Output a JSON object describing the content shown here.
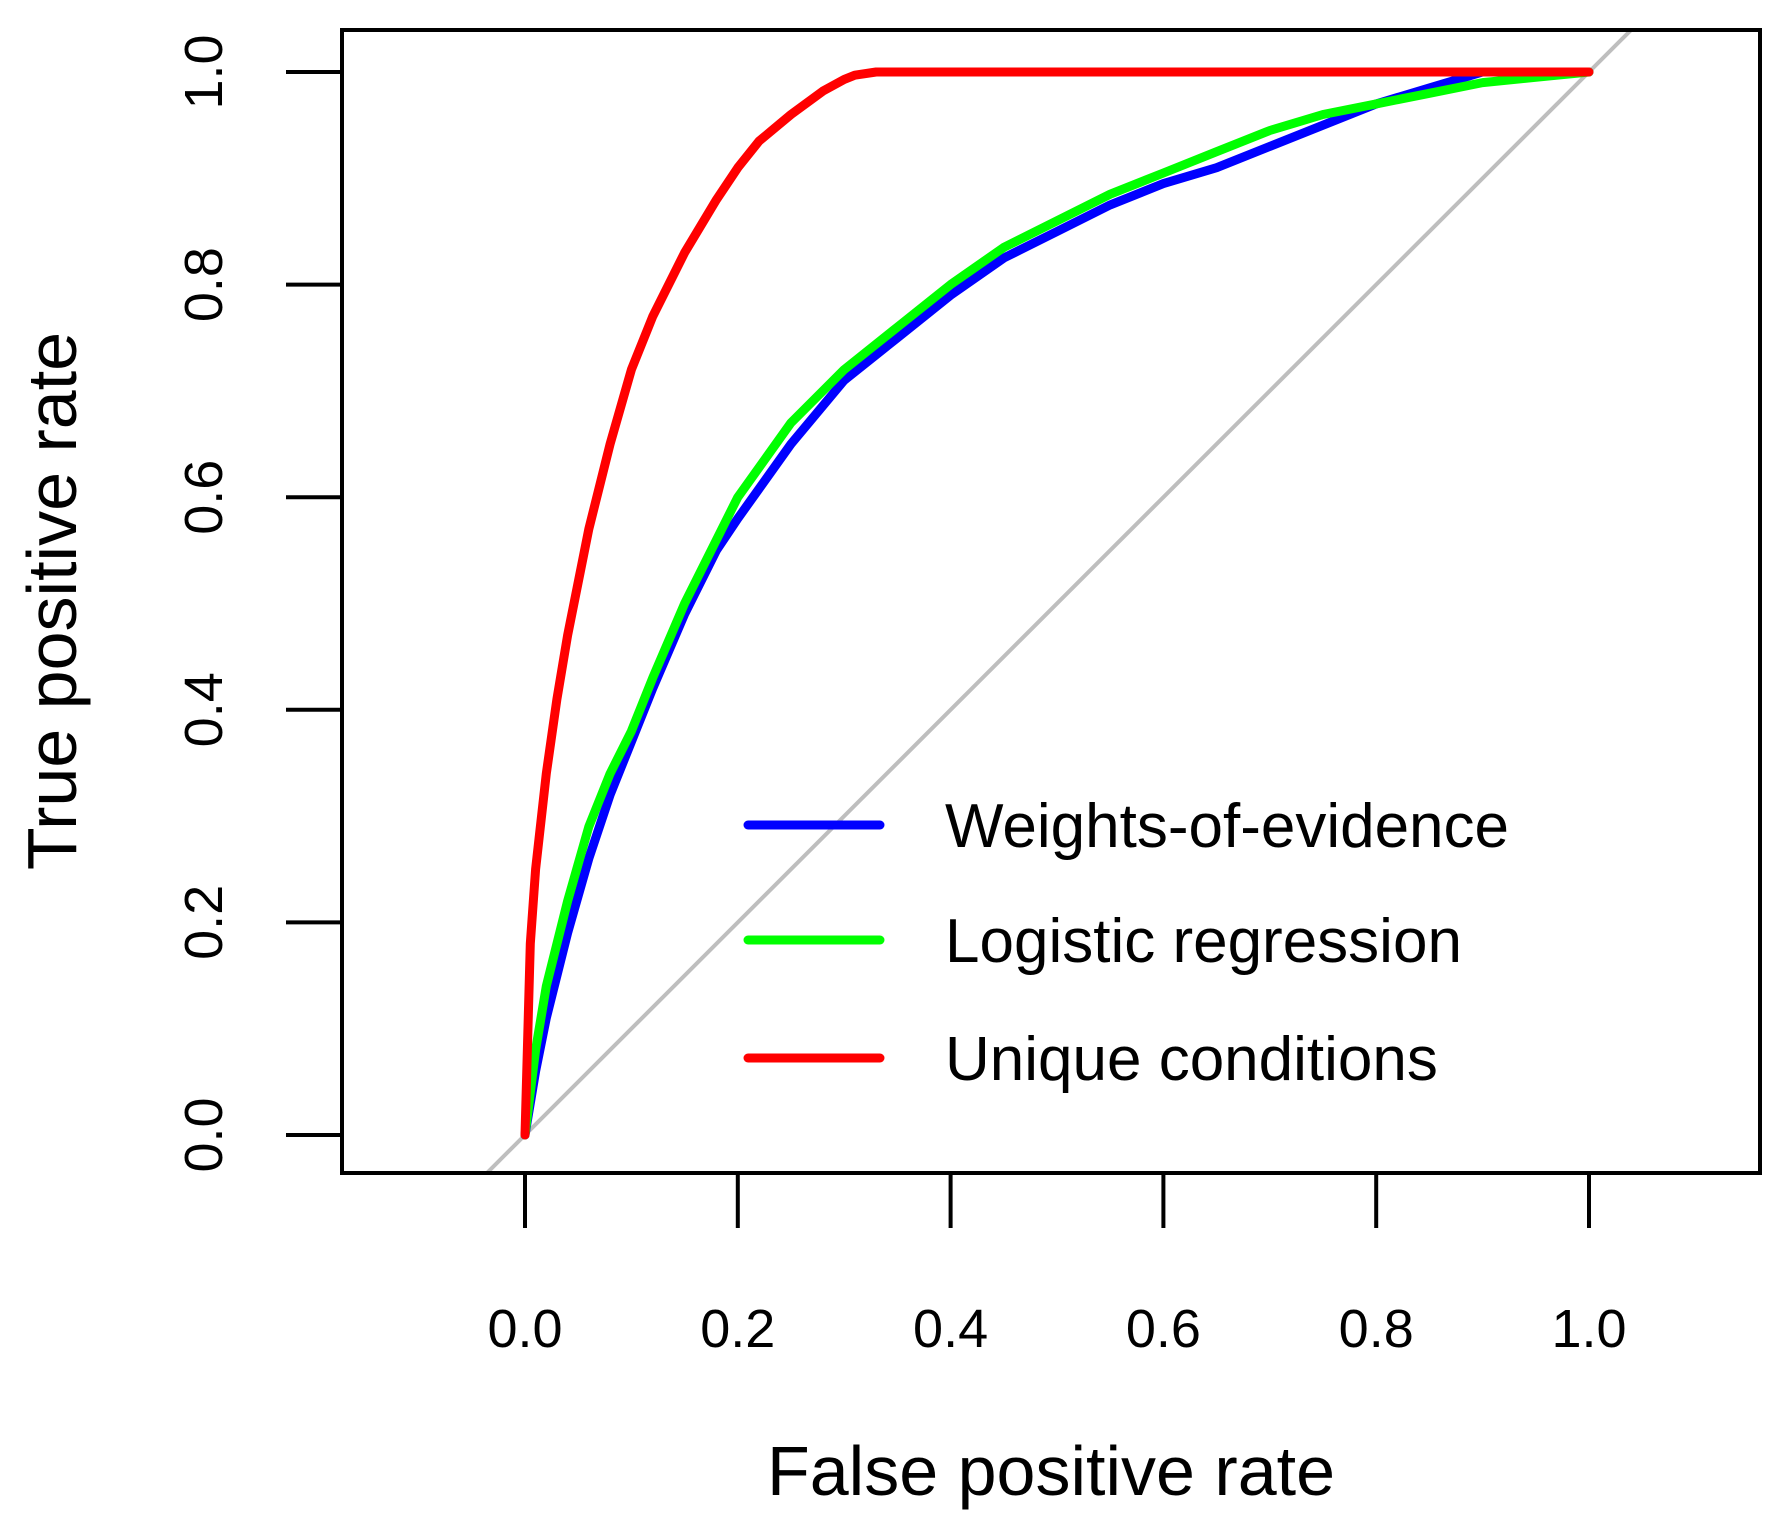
{
  "chart_data": {
    "type": "line",
    "title": "",
    "xlabel": "False positive rate",
    "ylabel": "True positive rate",
    "xlim": [
      -0.17,
      1.16
    ],
    "ylim": [
      -0.04,
      1.04
    ],
    "x_ticks": [
      0.0,
      0.2,
      0.4,
      0.6,
      0.8,
      1.0
    ],
    "x_tick_labels": [
      "0.0",
      "0.2",
      "0.4",
      "0.6",
      "0.8",
      "1.0"
    ],
    "y_ticks": [
      0.0,
      0.2,
      0.4,
      0.6,
      0.8,
      1.0
    ],
    "y_tick_labels": [
      "0.0",
      "0.2",
      "0.4",
      "0.6",
      "0.8",
      "1.0"
    ],
    "grid": false,
    "legend_position": "bottom-right",
    "reference_line": {
      "name": "Diagonal",
      "color": "#bebebe",
      "x": [
        0,
        1
      ],
      "y": [
        0,
        1
      ]
    },
    "series": [
      {
        "name": "Weights-of-evidence",
        "color": "#0000ff",
        "x": [
          0,
          0.01,
          0.02,
          0.04,
          0.06,
          0.08,
          0.1,
          0.12,
          0.15,
          0.18,
          0.2,
          0.25,
          0.3,
          0.35,
          0.4,
          0.45,
          0.5,
          0.55,
          0.6,
          0.65,
          0.7,
          0.75,
          0.8,
          0.85,
          0.9,
          0.95,
          1.0
        ],
        "y": [
          0,
          0.06,
          0.11,
          0.19,
          0.26,
          0.32,
          0.37,
          0.42,
          0.49,
          0.55,
          0.58,
          0.65,
          0.71,
          0.75,
          0.79,
          0.825,
          0.85,
          0.875,
          0.895,
          0.91,
          0.93,
          0.95,
          0.97,
          0.985,
          1.0,
          1.0,
          1.0
        ]
      },
      {
        "name": "Logistic regression",
        "color": "#00ff00",
        "x": [
          0,
          0.01,
          0.02,
          0.04,
          0.06,
          0.08,
          0.1,
          0.12,
          0.15,
          0.18,
          0.2,
          0.25,
          0.3,
          0.35,
          0.4,
          0.45,
          0.5,
          0.55,
          0.6,
          0.65,
          0.7,
          0.75,
          0.8,
          0.85,
          0.9,
          0.95,
          1.0
        ],
        "y": [
          0,
          0.08,
          0.14,
          0.22,
          0.29,
          0.34,
          0.38,
          0.43,
          0.5,
          0.56,
          0.6,
          0.67,
          0.72,
          0.76,
          0.8,
          0.835,
          0.86,
          0.885,
          0.905,
          0.925,
          0.945,
          0.96,
          0.97,
          0.98,
          0.99,
          0.995,
          1.0
        ]
      },
      {
        "name": "Unique conditions",
        "color": "#ff0000",
        "x": [
          0,
          0.005,
          0.01,
          0.02,
          0.03,
          0.04,
          0.05,
          0.06,
          0.08,
          0.1,
          0.12,
          0.15,
          0.18,
          0.2,
          0.22,
          0.25,
          0.28,
          0.3,
          0.31,
          0.33,
          0.4,
          0.5,
          0.6,
          0.7,
          0.8,
          0.9,
          1.0
        ],
        "y": [
          0,
          0.18,
          0.25,
          0.34,
          0.41,
          0.47,
          0.52,
          0.57,
          0.65,
          0.72,
          0.77,
          0.83,
          0.88,
          0.91,
          0.935,
          0.96,
          0.982,
          0.993,
          0.997,
          1.0,
          1.0,
          1.0,
          1.0,
          1.0,
          1.0,
          1.0,
          1.0
        ]
      }
    ]
  }
}
